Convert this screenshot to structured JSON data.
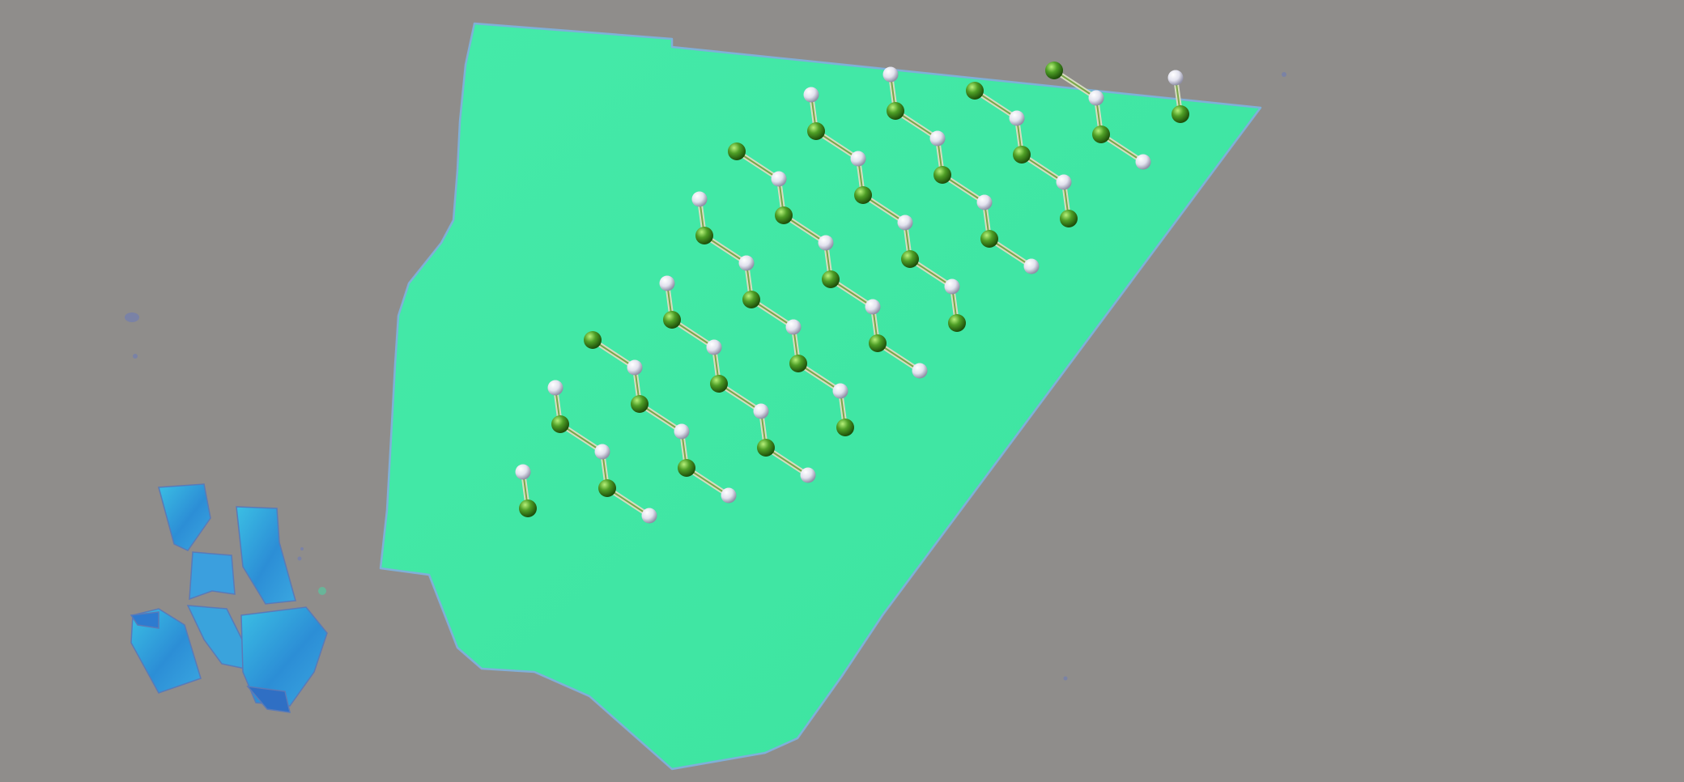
{
  "scene": {
    "substrate": "silicon-wafer",
    "flake": "large-monolayer-flake",
    "fragments": "small-bulk-crystal-fragments",
    "overlay": "honeycomb-lattice-ball-and-stick-model",
    "atom_types": [
      "green-atom",
      "white-atom"
    ]
  },
  "colors": {
    "substrate": "#8f8d8b",
    "flake": "#3fe7a4",
    "flake_edge": "#7fb0d8",
    "fragment": "#2e9fd8",
    "atom_green": "#3d8f1c",
    "atom_white": "#e4e4ef",
    "bond": "#c9d6a8"
  }
}
